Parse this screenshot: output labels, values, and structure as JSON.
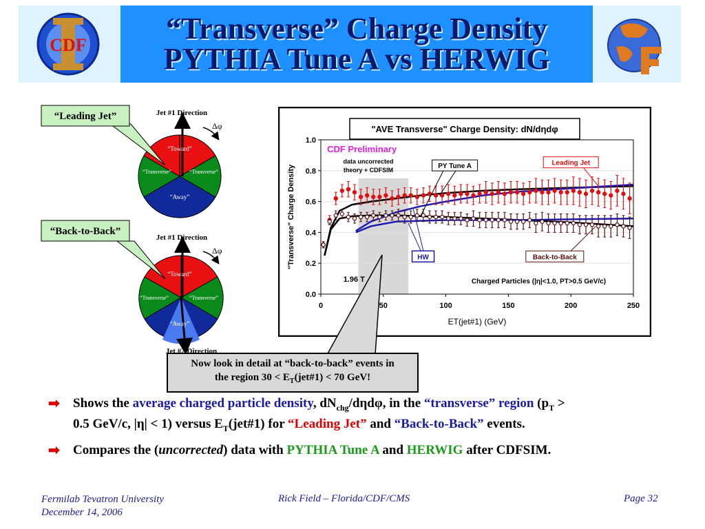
{
  "title_line1": "“Transverse” Charge Density",
  "title_line2": "PYTHIA Tune A vs HERWIG",
  "logo_left_text": "CDF",
  "diagram_top": {
    "label": "“Leading Jet”",
    "direction": "Jet #1 Direction",
    "dphi": "Δφ",
    "toward": "“Toward”",
    "trans_left": "“Transverse”",
    "trans_right": "“Transverse”",
    "away": "“Away”"
  },
  "diagram_bottom": {
    "label": "“Back-to-Back”",
    "direction": "Jet #1 Direction",
    "dphi": "Δφ",
    "toward": "“Toward”",
    "trans_left": "“Transverse”",
    "trans_right": "“Transverse”",
    "away": "“Away”",
    "direction2": "Jet #2 Direction"
  },
  "callout": {
    "line1": "Now look in detail at “back-to-back” events in",
    "line2_pre": "the region 30 < E",
    "line2_sub": "T",
    "line2_post": "(jet#1) < 70 GeV!"
  },
  "bullets": {
    "b1_p1": "Shows the ",
    "b1_p2": "average charged particle density",
    "b1_p3": ", dN",
    "b1_sub1": "chg",
    "b1_p4": "/dηdφ, in the ",
    "b1_p5": "“transverse” region",
    "b1_p6": " (p",
    "b1_sub2": "T",
    "b1_p7": " >",
    "b1_p8": "0.5 GeV/c, |η| < 1) versus E",
    "b1_sub3": "T",
    "b1_p9": "(jet#1) for ",
    "b1_p10": "“Leading Jet”",
    "b1_p11": " and ",
    "b1_p12": "“Back-to-Back”",
    "b1_p13": " events.",
    "b2_p1": "Compares the (",
    "b2_p2": "uncorrected",
    "b2_p3": ") data with ",
    "b2_p4": "PYTHIA Tune A",
    "b2_p5": " and ",
    "b2_p6": "HERWIG",
    "b2_p7": " after CDFSIM."
  },
  "footer": {
    "left1": "Fermilab Tevatron University",
    "left2": "December 14, 2006",
    "mid": "Rick Field – Florida/CDF/CMS",
    "right": "Page 32"
  },
  "chart_data": {
    "type": "line",
    "title": "\"AVE Transverse\" Charge Density: dN/dηdφ",
    "xlabel": "ET(jet#1)   (GeV)",
    "ylabel": "\"Transverse\" Charge Density",
    "xlim": [
      0,
      250
    ],
    "ylim": [
      0.0,
      1.0
    ],
    "xticks": [
      0,
      50,
      100,
      150,
      200,
      250
    ],
    "yticks": [
      0.0,
      0.2,
      0.4,
      0.6,
      0.8,
      1.0
    ],
    "xtick_labels": [
      "0",
      "50",
      "100",
      "150",
      "200",
      "250"
    ],
    "ytick_labels": [
      "0.0",
      "0.2",
      "0.4",
      "0.6",
      "0.8",
      "1.0"
    ],
    "annotations": {
      "preliminary": "CDF Preliminary",
      "note1": "data uncorrected",
      "note2": "theory + CDFSIM",
      "py_label": "PY Tune A",
      "hw_label": "HW",
      "leading_label": "Leading Jet",
      "b2b_label": "Back-to-Back",
      "cut_label": "Charged Particles (|η|<1.0, PT>0.5 GeV/c)",
      "energy_label": "1.96 T"
    },
    "shaded_region": [
      30,
      70
    ],
    "series": [
      {
        "name": "Leading Jet",
        "color": "#e01010",
        "marker": "filled",
        "x": [
          2,
          7,
          12,
          17,
          22,
          27,
          32,
          37,
          42,
          47,
          52,
          57,
          62,
          67,
          72,
          77,
          82,
          87,
          92,
          97,
          102,
          107,
          112,
          117,
          122,
          127,
          132,
          137,
          142,
          147,
          152,
          157,
          162,
          167,
          172,
          177,
          182,
          187,
          192,
          197,
          202,
          207,
          212,
          217,
          222,
          227,
          232,
          237,
          242,
          247
        ],
        "y": [
          0.32,
          0.48,
          0.62,
          0.67,
          0.68,
          0.66,
          0.63,
          0.64,
          0.63,
          0.63,
          0.64,
          0.62,
          0.63,
          0.64,
          0.64,
          0.63,
          0.64,
          0.65,
          0.64,
          0.64,
          0.65,
          0.64,
          0.65,
          0.65,
          0.64,
          0.65,
          0.66,
          0.65,
          0.66,
          0.65,
          0.66,
          0.66,
          0.65,
          0.66,
          0.67,
          0.66,
          0.66,
          0.67,
          0.66,
          0.66,
          0.67,
          0.66,
          0.65,
          0.67,
          0.66,
          0.65,
          0.64,
          0.67,
          0.65,
          0.62
        ],
        "err": [
          0.02,
          0.03,
          0.04,
          0.04,
          0.05,
          0.05,
          0.05,
          0.05,
          0.05,
          0.05,
          0.05,
          0.05,
          0.05,
          0.05,
          0.05,
          0.05,
          0.05,
          0.05,
          0.06,
          0.06,
          0.06,
          0.06,
          0.06,
          0.06,
          0.06,
          0.06,
          0.07,
          0.07,
          0.07,
          0.07,
          0.07,
          0.07,
          0.07,
          0.07,
          0.08,
          0.08,
          0.08,
          0.08,
          0.08,
          0.08,
          0.09,
          0.09,
          0.09,
          0.09,
          0.09,
          0.09,
          0.09,
          0.1,
          0.1,
          0.1
        ]
      },
      {
        "name": "Back-to-Back",
        "color": "#5a1010",
        "marker": "open",
        "x": [
          2,
          7,
          12,
          17,
          22,
          27,
          32,
          37,
          42,
          47,
          52,
          57,
          62,
          67,
          72,
          77,
          82,
          87,
          92,
          97,
          102,
          107,
          112,
          117,
          122,
          127,
          132,
          137,
          142,
          147,
          152,
          157,
          162,
          167,
          172,
          177,
          182,
          187,
          192,
          197,
          202,
          207,
          212,
          217,
          222,
          227,
          232,
          237,
          242,
          247
        ],
        "y": [
          0.32,
          0.47,
          0.51,
          0.52,
          0.5,
          0.49,
          0.5,
          0.5,
          0.51,
          0.5,
          0.51,
          0.51,
          0.51,
          0.5,
          0.5,
          0.51,
          0.51,
          0.5,
          0.5,
          0.5,
          0.49,
          0.49,
          0.49,
          0.48,
          0.49,
          0.48,
          0.48,
          0.48,
          0.48,
          0.48,
          0.47,
          0.47,
          0.47,
          0.48,
          0.46,
          0.47,
          0.46,
          0.46,
          0.46,
          0.46,
          0.46,
          0.45,
          0.45,
          0.45,
          0.44,
          0.44,
          0.44,
          0.45,
          0.44,
          0.43
        ],
        "err": [
          0.02,
          0.02,
          0.03,
          0.03,
          0.03,
          0.03,
          0.03,
          0.03,
          0.03,
          0.03,
          0.03,
          0.03,
          0.04,
          0.04,
          0.04,
          0.04,
          0.04,
          0.04,
          0.04,
          0.04,
          0.04,
          0.04,
          0.04,
          0.04,
          0.05,
          0.05,
          0.05,
          0.05,
          0.05,
          0.05,
          0.05,
          0.05,
          0.05,
          0.05,
          0.06,
          0.06,
          0.06,
          0.06,
          0.06,
          0.06,
          0.06,
          0.06,
          0.06,
          0.06,
          0.07,
          0.07,
          0.07,
          0.07,
          0.07,
          0.07
        ]
      },
      {
        "name": "PY Tune A",
        "color": "#000000",
        "x": [
          3,
          8,
          15,
          25,
          40,
          60,
          80,
          100,
          130,
          160,
          200,
          250
        ],
        "y": [
          0.25,
          0.43,
          0.54,
          0.58,
          0.6,
          0.62,
          0.64,
          0.655,
          0.67,
          0.68,
          0.69,
          0.7
        ]
      },
      {
        "name": "PY Tune A",
        "color": "#000000",
        "x": [
          3,
          8,
          15,
          25,
          40,
          60,
          80,
          100,
          130,
          160,
          200,
          250
        ],
        "y": [
          0.25,
          0.42,
          0.49,
          0.505,
          0.51,
          0.51,
          0.505,
          0.5,
          0.49,
          0.48,
          0.465,
          0.44
        ]
      },
      {
        "name": "HW",
        "color": "#1a1ab0",
        "x": [
          28,
          40,
          60,
          80,
          100,
          130,
          160,
          200,
          250
        ],
        "y": [
          0.4,
          0.44,
          0.47,
          0.475,
          0.48,
          0.48,
          0.48,
          0.485,
          0.49
        ]
      },
      {
        "name": "HW",
        "color": "#1a1ab0",
        "x": [
          28,
          40,
          60,
          80,
          100,
          130,
          160,
          200,
          250
        ],
        "y": [
          0.41,
          0.47,
          0.53,
          0.57,
          0.6,
          0.64,
          0.665,
          0.685,
          0.71
        ]
      }
    ]
  }
}
